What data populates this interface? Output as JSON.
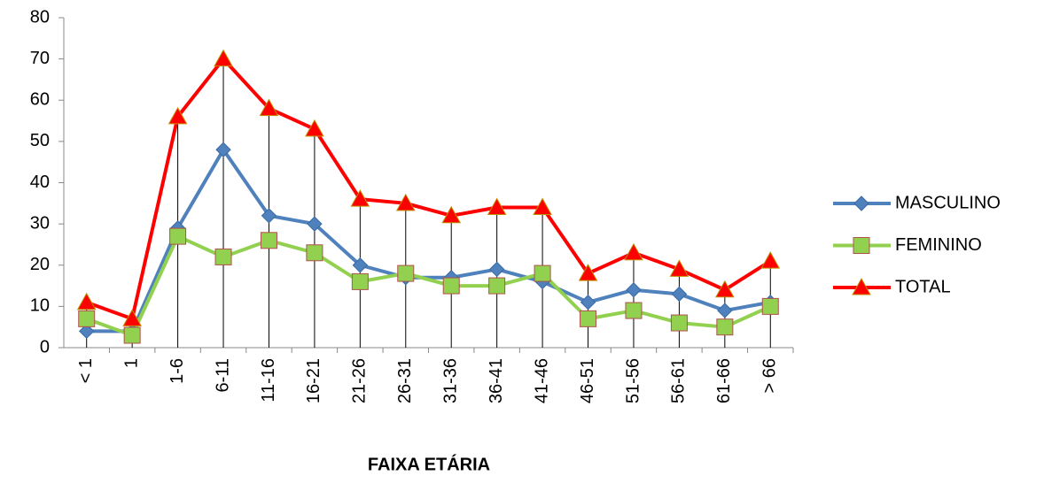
{
  "chart_data": {
    "type": "line",
    "x_label": "FAIXA ETÁRIA",
    "categories": [
      "< 1",
      "1",
      "1-6",
      "6-11",
      "11-16",
      "16-21",
      "21-26",
      "26-31",
      "31-36",
      "36-41",
      "41-46",
      "46-51",
      "51-56",
      "56-61",
      "61-66",
      "> 66"
    ],
    "series": [
      {
        "name": "MASCULINO",
        "color": "#4f81bd",
        "marker": "diamond",
        "values": [
          4,
          4,
          29,
          48,
          32,
          30,
          20,
          17,
          17,
          19,
          16,
          11,
          14,
          13,
          9,
          11
        ]
      },
      {
        "name": "FEMININO",
        "color": "#92d050",
        "marker": "square",
        "values": [
          7,
          3,
          27,
          22,
          26,
          23,
          16,
          18,
          15,
          15,
          18,
          7,
          9,
          6,
          5,
          10
        ]
      },
      {
        "name": "TOTAL",
        "color": "#ff0000",
        "marker": "triangle",
        "values": [
          11,
          7,
          56,
          70,
          58,
          53,
          36,
          35,
          32,
          34,
          34,
          18,
          23,
          19,
          14,
          21
        ]
      }
    ],
    "ylim": [
      0,
      80
    ],
    "yticks": [
      0,
      10,
      20,
      30,
      40,
      50,
      60,
      70,
      80
    ],
    "drop_lines": true,
    "legend": "right"
  }
}
